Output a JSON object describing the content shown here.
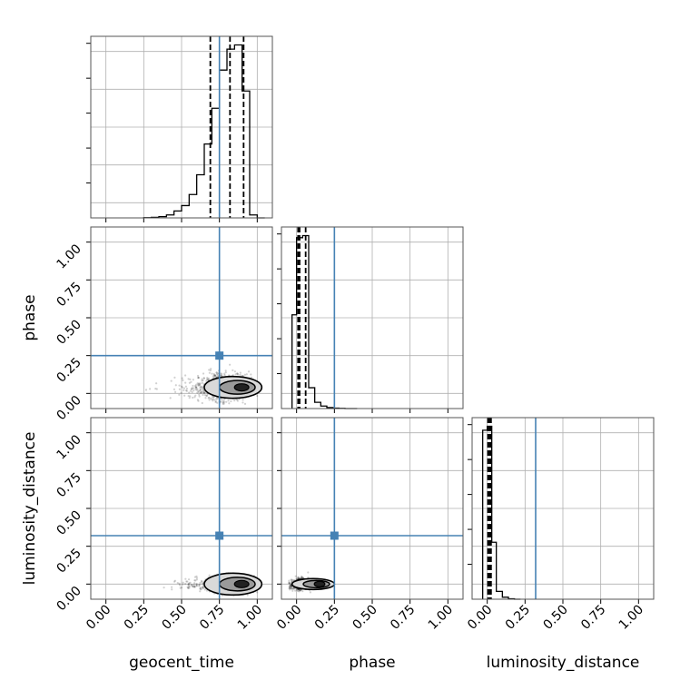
{
  "chart_data": {
    "type": "corner",
    "parameters": [
      "geocent_time",
      "phase",
      "luminosity_distance"
    ],
    "axis_range": [
      -0.1,
      1.1
    ],
    "ticks": [
      0.0,
      0.25,
      0.5,
      0.75,
      1.0
    ],
    "tick_labels": [
      "0.00",
      "0.25",
      "0.50",
      "0.75",
      "1.00"
    ],
    "grid": true,
    "colors": {
      "truth": "#4682b4",
      "hist": "#000000",
      "scatter": "#000000",
      "contour_fill": "#d9d9d9"
    },
    "truths": {
      "geocent_time": 0.75,
      "phase": 0.25,
      "luminosity_distance": 0.32
    },
    "quantiles": {
      "geocent_time": [
        0.69,
        0.82,
        0.91
      ],
      "phase": [
        0.01,
        0.02,
        0.06
      ],
      "luminosity_distance": [
        0.005,
        0.015,
        0.025
      ]
    },
    "histograms": {
      "geocent_time": {
        "edges": [
          0.25,
          0.3,
          0.35,
          0.4,
          0.45,
          0.5,
          0.55,
          0.6,
          0.65,
          0.7,
          0.75,
          0.8,
          0.85,
          0.9,
          0.95,
          1.0,
          1.05
        ],
        "counts": [
          1,
          2,
          5,
          12,
          28,
          50,
          95,
          175,
          300,
          445,
          600,
          685,
          702,
          515,
          12,
          0
        ]
      },
      "phase": {
        "edges": [
          -0.03,
          0.0,
          0.04,
          0.08,
          0.12,
          0.16,
          0.2,
          0.24,
          0.28,
          0.32,
          0.36,
          0.4
        ],
        "counts": [
          450,
          820,
          830,
          100,
          30,
          12,
          5,
          2,
          1,
          0,
          0
        ]
      },
      "luminosity_distance": {
        "edges": [
          -0.03,
          0.0,
          0.03,
          0.06,
          0.1,
          0.14,
          0.18,
          0.22
        ],
        "counts": [
          860,
          880,
          290,
          40,
          10,
          2,
          0
        ]
      }
    },
    "scatter_cloud": {
      "geocent_time_vs_phase": {
        "x_center": 0.8,
        "x_spread": 0.18,
        "y_center": 0.04,
        "y_spread": 0.06
      },
      "geocent_time_vs_luminosity_distance": {
        "x_center": 0.82,
        "x_spread": 0.16,
        "y_center": 0.0,
        "y_spread": 0.035
      },
      "phase_vs_luminosity_distance": {
        "x_center": 0.03,
        "x_spread": 0.06,
        "y_center": 0.0,
        "y_spread": 0.03
      }
    }
  }
}
